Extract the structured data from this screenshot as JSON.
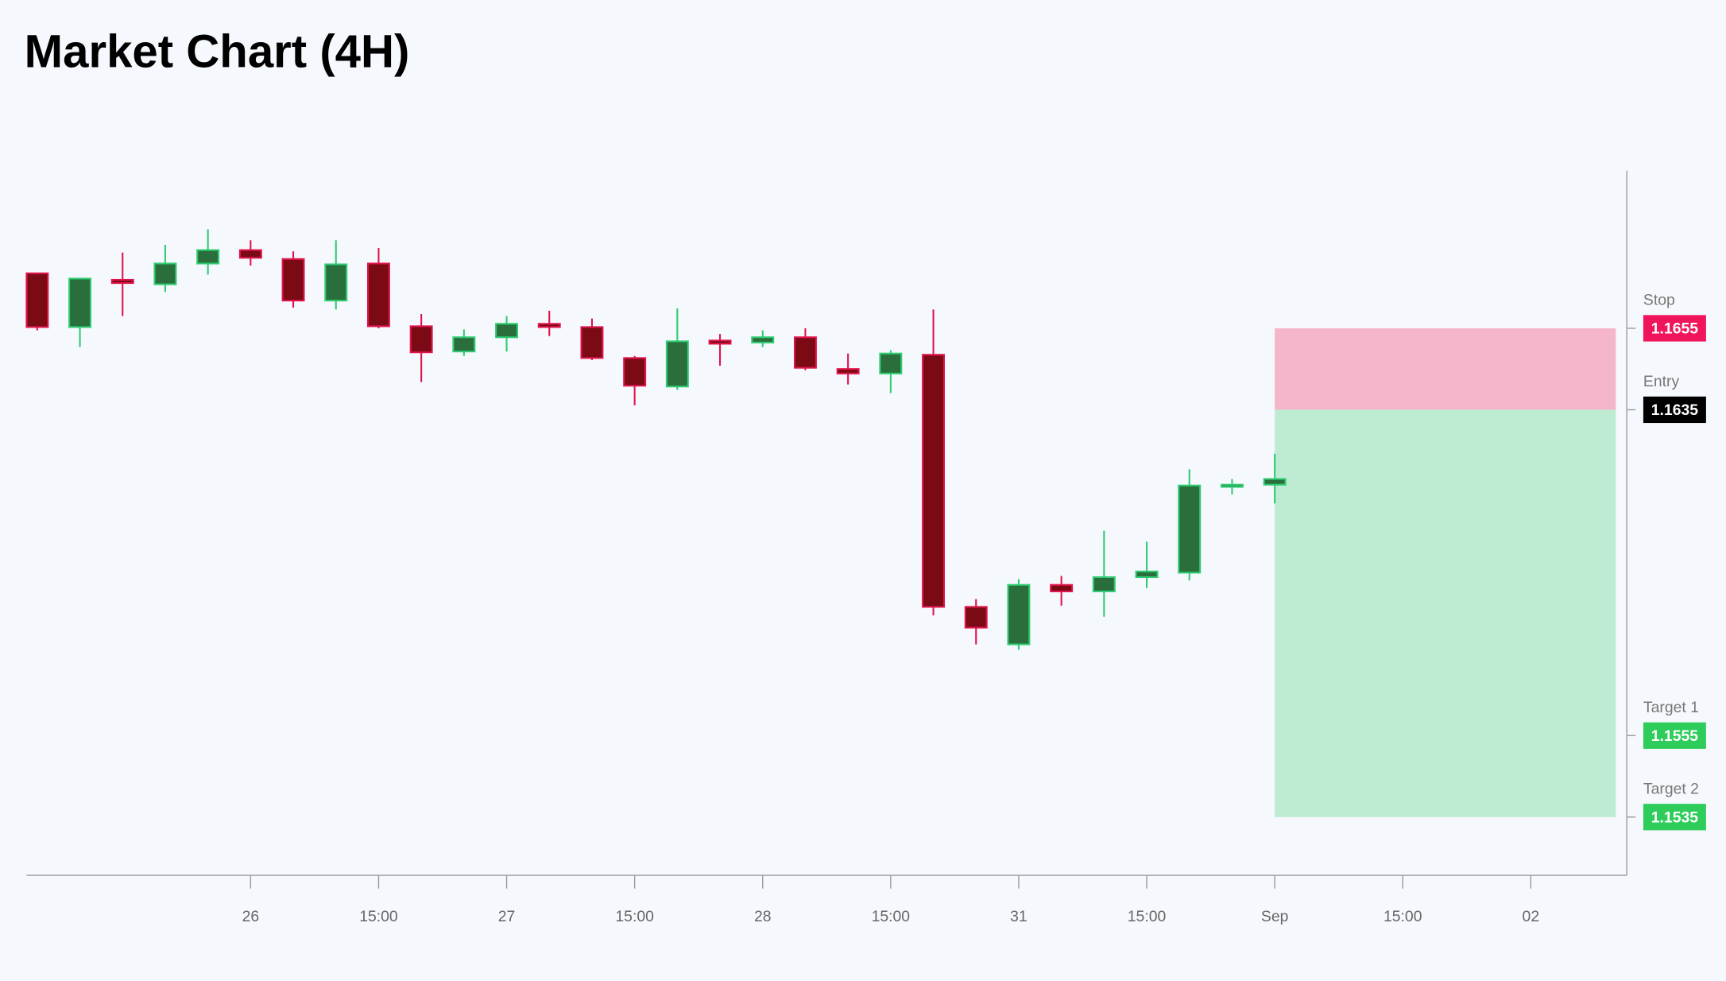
{
  "chart_data": {
    "type": "candlestick",
    "title": "Market Chart (4H)",
    "up_color": "#2a6e3c",
    "up_border": "#2ecc71",
    "down_color": "#7a0a14",
    "down_border": "#e0144c",
    "open": [
      1.16685,
      1.16553,
      1.16669,
      1.16658,
      1.16709,
      1.16742,
      1.1672,
      1.16618,
      1.16709,
      1.16555,
      1.16493,
      1.16528,
      1.16561,
      1.16553,
      1.16477,
      1.16407,
      1.1652,
      1.16515,
      1.16528,
      1.1645,
      1.16439,
      1.16485,
      1.15866,
      1.15774,
      1.1592,
      1.15904,
      1.15939,
      1.1595,
      1.16161,
      1.16166
    ],
    "high": [
      1.16685,
      1.16674,
      1.16736,
      1.16755,
      1.16793,
      1.16766,
      1.16739,
      1.16766,
      1.16747,
      1.16585,
      1.16547,
      1.1658,
      1.16593,
      1.16574,
      1.16482,
      1.16599,
      1.16536,
      1.16545,
      1.1655,
      1.16488,
      1.16496,
      1.16596,
      1.15885,
      1.15934,
      1.15942,
      1.16053,
      1.16026,
      1.16204,
      1.1618,
      1.16242
    ],
    "low": [
      1.16545,
      1.16504,
      1.1658,
      1.16639,
      1.16682,
      1.16704,
      1.16601,
      1.16596,
      1.1655,
      1.16418,
      1.16482,
      1.16493,
      1.16531,
      1.16472,
      1.16361,
      1.16399,
      1.16458,
      1.16504,
      1.16447,
      1.16412,
      1.16391,
      1.15845,
      1.15774,
      1.15761,
      1.15869,
      1.15842,
      1.15912,
      1.15931,
      1.16142,
      1.1612
    ],
    "close": [
      1.16553,
      1.16672,
      1.16661,
      1.16709,
      1.16742,
      1.16723,
      1.16618,
      1.16707,
      1.16555,
      1.16491,
      1.16528,
      1.16561,
      1.16553,
      1.16477,
      1.16409,
      1.16518,
      1.16512,
      1.16528,
      1.16453,
      1.16439,
      1.16488,
      1.15866,
      1.15815,
      1.1592,
      1.15904,
      1.15939,
      1.15953,
      1.16164,
      1.16166,
      1.1618
    ],
    "xlim": [
      -0.25,
      37.25
    ],
    "xticks": [
      {
        "value": 5,
        "label": "26"
      },
      {
        "value": 8,
        "label": "15:00"
      },
      {
        "value": 11,
        "label": "27"
      },
      {
        "value": 14,
        "label": "15:00"
      },
      {
        "value": 17,
        "label": "28"
      },
      {
        "value": 20,
        "label": "15:00"
      },
      {
        "value": 23,
        "label": "31"
      },
      {
        "value": 26,
        "label": "15:00"
      },
      {
        "value": 29,
        "label": "Sep"
      },
      {
        "value": 32,
        "label": "15:00"
      },
      {
        "value": 35,
        "label": "02"
      }
    ],
    "ylim": [
      1.15207,
      1.16937
    ],
    "levels": [
      {
        "name": "Stop",
        "value": 1.1655,
        "color": "#f0145a"
      },
      {
        "name": "Entry",
        "value": 1.1635,
        "color": "#000000"
      },
      {
        "name": "Target 1",
        "value": 1.1555,
        "color": "#2ecc5a"
      },
      {
        "name": "Target 2",
        "value": 1.1535,
        "color": "#2ecc5a"
      }
    ],
    "risk_color": "#f5b5cb",
    "reward_color": "#bdecd3"
  }
}
